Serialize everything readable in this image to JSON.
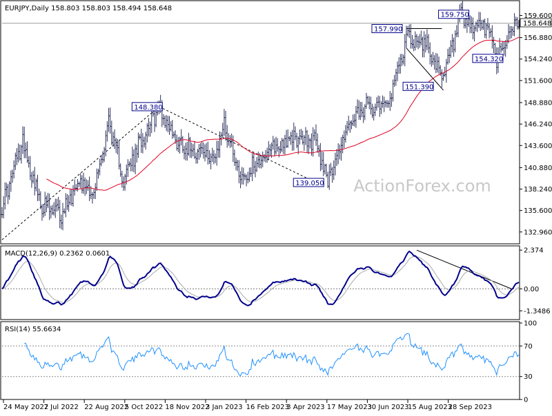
{
  "chart_data": [
    {
      "panel": "price",
      "type": "ohlc",
      "title": "EURJPY,Daily  158.803 158.803 158.494 158.648",
      "watermark": "ActionForex.com",
      "ylim": [
        131.5,
        161.0
      ],
      "ticks": [
        "159.600",
        "156.880",
        "154.240",
        "151.600",
        "148.880",
        "146.240",
        "143.600",
        "140.880",
        "138.240",
        "135.600",
        "132.960"
      ],
      "tick_values": [
        159.6,
        156.88,
        154.24,
        151.6,
        148.88,
        146.24,
        143.6,
        140.88,
        138.24,
        135.6,
        132.96
      ],
      "last_price": {
        "label": "158.648",
        "value": 158.648
      },
      "price_anchors": [
        [
          0,
          136.0
        ],
        [
          14,
          144.2
        ],
        [
          26,
          136.3
        ],
        [
          40,
          135.0
        ],
        [
          52,
          139.6
        ],
        [
          62,
          137.6
        ],
        [
          72,
          146.5
        ],
        [
          82,
          139.3
        ],
        [
          97,
          145.5
        ],
        [
          106,
          148.3
        ],
        [
          118,
          144.1
        ],
        [
          130,
          143.2
        ],
        [
          144,
          142.0
        ],
        [
          150,
          146.3
        ],
        [
          162,
          139.4
        ],
        [
          174,
          142.0
        ],
        [
          186,
          143.5
        ],
        [
          197,
          144.5
        ],
        [
          212,
          144.0
        ],
        [
          220,
          139.4
        ],
        [
          233,
          145.8
        ],
        [
          247,
          148.4
        ],
        [
          262,
          149.3
        ],
        [
          273,
          156.9
        ],
        [
          287,
          156.2
        ],
        [
          297,
          151.4
        ],
        [
          310,
          159.5
        ],
        [
          316,
          157.8
        ],
        [
          322,
          158.6
        ],
        [
          330,
          157.4
        ],
        [
          334,
          154.3
        ],
        [
          346,
          158.6
        ]
      ],
      "series": [
        {
          "name": "price",
          "color": "#2a2f5a"
        },
        {
          "name": "ma",
          "color": "#e0001f"
        }
      ],
      "annotations": [
        {
          "label": "148.380",
          "value": 148.38
        },
        {
          "label": "139.050",
          "value": 139.05
        },
        {
          "label": "157.990",
          "value": 157.99
        },
        {
          "label": "159.750",
          "value": 159.75
        },
        {
          "label": "151.390",
          "value": 151.39
        },
        {
          "label": "154.320",
          "value": 154.32
        }
      ],
      "x_dates": [
        "24 May 2022",
        "7 Jul 2022",
        "22 Aug 2022",
        "5 Oct 2022",
        "18 Nov 2022",
        "3 Jan 2023",
        "16 Feb 2023",
        "3 Apr 2023",
        "17 May 2023",
        "30 Jun 2023",
        "15 Aug 2023",
        "28 Sep 2023"
      ]
    },
    {
      "panel": "macd",
      "type": "line",
      "title": "MACD(12,26,9) 0.2362 0.0601",
      "ylim": [
        -1.8,
        2.55
      ],
      "ticks": [
        "2.374",
        "0.00",
        "-1.3486"
      ],
      "tick_values": [
        2.374,
        0.0,
        -1.3486
      ],
      "series": [
        {
          "name": "MACD",
          "color": "#00008b"
        },
        {
          "name": "Signal",
          "color": "#a9a9a9"
        }
      ]
    },
    {
      "panel": "rsi",
      "type": "line",
      "title": "RSI(14) 55.6634",
      "ylim": [
        0,
        100
      ],
      "ticks": [
        "100",
        "70",
        "30",
        "0"
      ],
      "tick_values": [
        100,
        70,
        30,
        0
      ],
      "levels": [
        70,
        30
      ],
      "series": [
        {
          "name": "RSI",
          "color": "#1e90ff"
        }
      ]
    }
  ]
}
